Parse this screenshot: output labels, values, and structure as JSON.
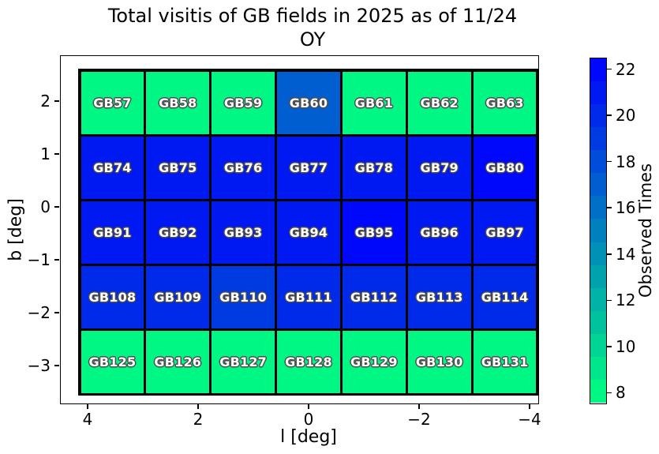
{
  "title": {
    "line1": "Total visitis of GB fields in 2025 as of 11/24",
    "line2": "OY"
  },
  "x_axis": {
    "label": "l [deg]",
    "tick_labels": [
      "4",
      "2",
      "0",
      "−2",
      "−4"
    ],
    "tick_values": [
      4,
      2,
      0,
      -2,
      -4
    ],
    "inverted": true
  },
  "y_axis": {
    "label": "b [deg]",
    "tick_labels": [
      "2",
      "1",
      "0",
      "−1",
      "−2",
      "−3"
    ],
    "tick_values": [
      2,
      1,
      0,
      -1,
      -2,
      -3
    ]
  },
  "colorbar": {
    "label": "Observed Times",
    "tick_labels": [
      "8",
      "10",
      "12",
      "14",
      "16",
      "18",
      "20",
      "22"
    ],
    "tick_values": [
      8,
      10,
      12,
      14,
      16,
      18,
      20,
      22
    ],
    "vmin": 7.5,
    "vmax": 22.5,
    "n_bands": 15,
    "low_color": "#00ff7f",
    "high_color": "#0000ff"
  },
  "chart_data": {
    "type": "heatmap",
    "title": "Total visitis of GB fields in 2025 as of 11/24 OY",
    "xlabel": "l [deg]",
    "ylabel": "b [deg]",
    "colorbar_label": "Observed Times",
    "colormap": "green-to-blue (winter reversed)",
    "value_range": [
      7.5,
      22.5
    ],
    "x_axis_range_deg": [
      4.5,
      -4.5
    ],
    "y_axis_ticks_deg": [
      2,
      1,
      0,
      -1,
      -2,
      -3
    ],
    "grid": "7 columns x 5 rows of GB fields, black borders",
    "rows": [
      {
        "fields": [
          {
            "name": "GB57",
            "observed_times": 8
          },
          {
            "name": "GB58",
            "observed_times": 8
          },
          {
            "name": "GB59",
            "observed_times": 8
          },
          {
            "name": "GB60",
            "observed_times": 17
          },
          {
            "name": "GB61",
            "observed_times": 8
          },
          {
            "name": "GB62",
            "observed_times": 8
          },
          {
            "name": "GB63",
            "observed_times": 8
          }
        ]
      },
      {
        "fields": [
          {
            "name": "GB74",
            "observed_times": 21
          },
          {
            "name": "GB75",
            "observed_times": 21
          },
          {
            "name": "GB76",
            "observed_times": 21
          },
          {
            "name": "GB77",
            "observed_times": 21
          },
          {
            "name": "GB78",
            "observed_times": 21
          },
          {
            "name": "GB79",
            "observed_times": 21
          },
          {
            "name": "GB80",
            "observed_times": 22
          }
        ]
      },
      {
        "fields": [
          {
            "name": "GB91",
            "observed_times": 21
          },
          {
            "name": "GB92",
            "observed_times": 21
          },
          {
            "name": "GB93",
            "observed_times": 21
          },
          {
            "name": "GB94",
            "observed_times": 21
          },
          {
            "name": "GB95",
            "observed_times": 22
          },
          {
            "name": "GB96",
            "observed_times": 21
          },
          {
            "name": "GB97",
            "observed_times": 21
          }
        ]
      },
      {
        "fields": [
          {
            "name": "GB108",
            "observed_times": 20
          },
          {
            "name": "GB109",
            "observed_times": 20
          },
          {
            "name": "GB110",
            "observed_times": 19
          },
          {
            "name": "GB111",
            "observed_times": 20
          },
          {
            "name": "GB112",
            "observed_times": 20
          },
          {
            "name": "GB113",
            "observed_times": 20
          },
          {
            "name": "GB114",
            "observed_times": 20
          }
        ]
      },
      {
        "fields": [
          {
            "name": "GB125",
            "observed_times": 8
          },
          {
            "name": "GB126",
            "observed_times": 8
          },
          {
            "name": "GB127",
            "observed_times": 8
          },
          {
            "name": "GB128",
            "observed_times": 8
          },
          {
            "name": "GB129",
            "observed_times": 8
          },
          {
            "name": "GB130",
            "observed_times": 8
          },
          {
            "name": "GB131",
            "observed_times": 8
          }
        ]
      }
    ]
  }
}
